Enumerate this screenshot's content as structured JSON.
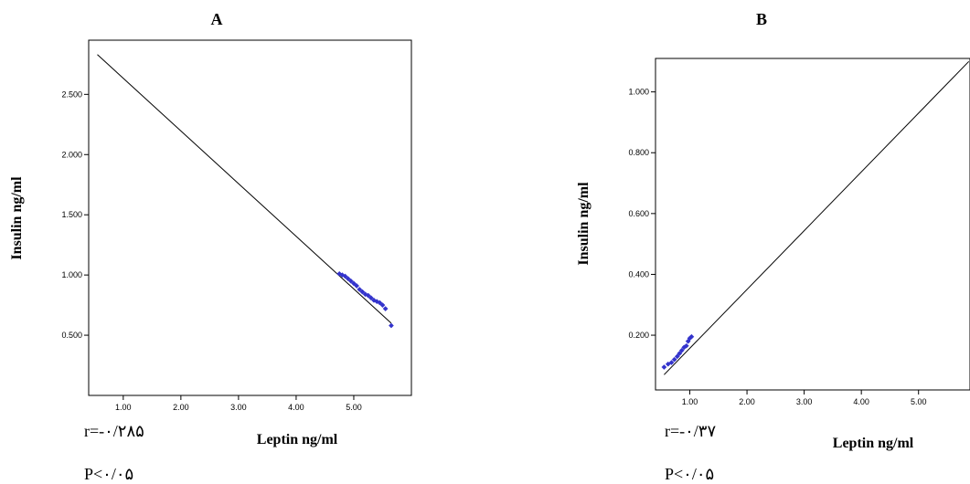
{
  "chart_data": [
    {
      "type": "scatter",
      "title": "A",
      "xlabel": "Leptin ng/ml",
      "ylabel": "Insulin ng/ml",
      "xlim": [
        0.4,
        6.0
      ],
      "ylim": [
        0.0,
        2.95
      ],
      "x_ticks": [
        1.0,
        2.0,
        3.0,
        4.0,
        5.0
      ],
      "x_tick_labels": [
        "1.00",
        "2.00",
        "3.00",
        "4.00",
        "5.00"
      ],
      "y_ticks": [
        0.5,
        1.0,
        1.5,
        2.0,
        2.5
      ],
      "y_tick_labels": [
        "0.500",
        "1.000",
        "1.500",
        "2.000",
        "2.500"
      ],
      "fit_line": {
        "x": [
          0.55,
          5.65
        ],
        "y": [
          2.83,
          0.6
        ]
      },
      "points": {
        "x": [
          4.75,
          4.8,
          4.85,
          4.9,
          4.95,
          5.0,
          5.05,
          5.1,
          5.15,
          5.2,
          5.25,
          5.3,
          5.35,
          5.4,
          5.45,
          5.5,
          5.55,
          5.65
        ],
        "y": [
          1.01,
          1.0,
          0.99,
          0.97,
          0.95,
          0.93,
          0.91,
          0.88,
          0.86,
          0.84,
          0.83,
          0.81,
          0.79,
          0.78,
          0.77,
          0.75,
          0.72,
          0.58
        ]
      },
      "stat_r": "r=-۰/۲۸۵",
      "stat_p": "P<۰/۰۵"
    },
    {
      "type": "scatter",
      "title": "B",
      "xlabel": "Leptin ng/ml",
      "ylabel": "Insulin ng/ml",
      "xlim": [
        0.4,
        5.9
      ],
      "ylim": [
        0.02,
        1.11
      ],
      "x_ticks": [
        1.0,
        2.0,
        3.0,
        4.0,
        5.0
      ],
      "x_tick_labels": [
        "1.00",
        "2.00",
        "3.00",
        "4.00",
        "5.00"
      ],
      "y_ticks": [
        0.2,
        0.4,
        0.6,
        0.8,
        1.0
      ],
      "y_tick_labels": [
        "0.200",
        "0.400",
        "0.600",
        "0.800",
        "1.000"
      ],
      "fit_line": {
        "x": [
          0.55,
          5.88
        ],
        "y": [
          0.07,
          1.1
        ]
      },
      "points": {
        "x": [
          0.55,
          0.62,
          0.68,
          0.73,
          0.78,
          0.82,
          0.86,
          0.9,
          0.94,
          0.97,
          1.0,
          1.03
        ],
        "y": [
          0.095,
          0.105,
          0.11,
          0.12,
          0.13,
          0.14,
          0.15,
          0.16,
          0.165,
          0.18,
          0.19,
          0.195
        ]
      },
      "stat_r": "r=-۰/۳۷",
      "stat_p": "P<۰/۰۵"
    }
  ],
  "colors": {
    "points": "#3333cc",
    "line": "#000000",
    "frame": "#000000"
  }
}
